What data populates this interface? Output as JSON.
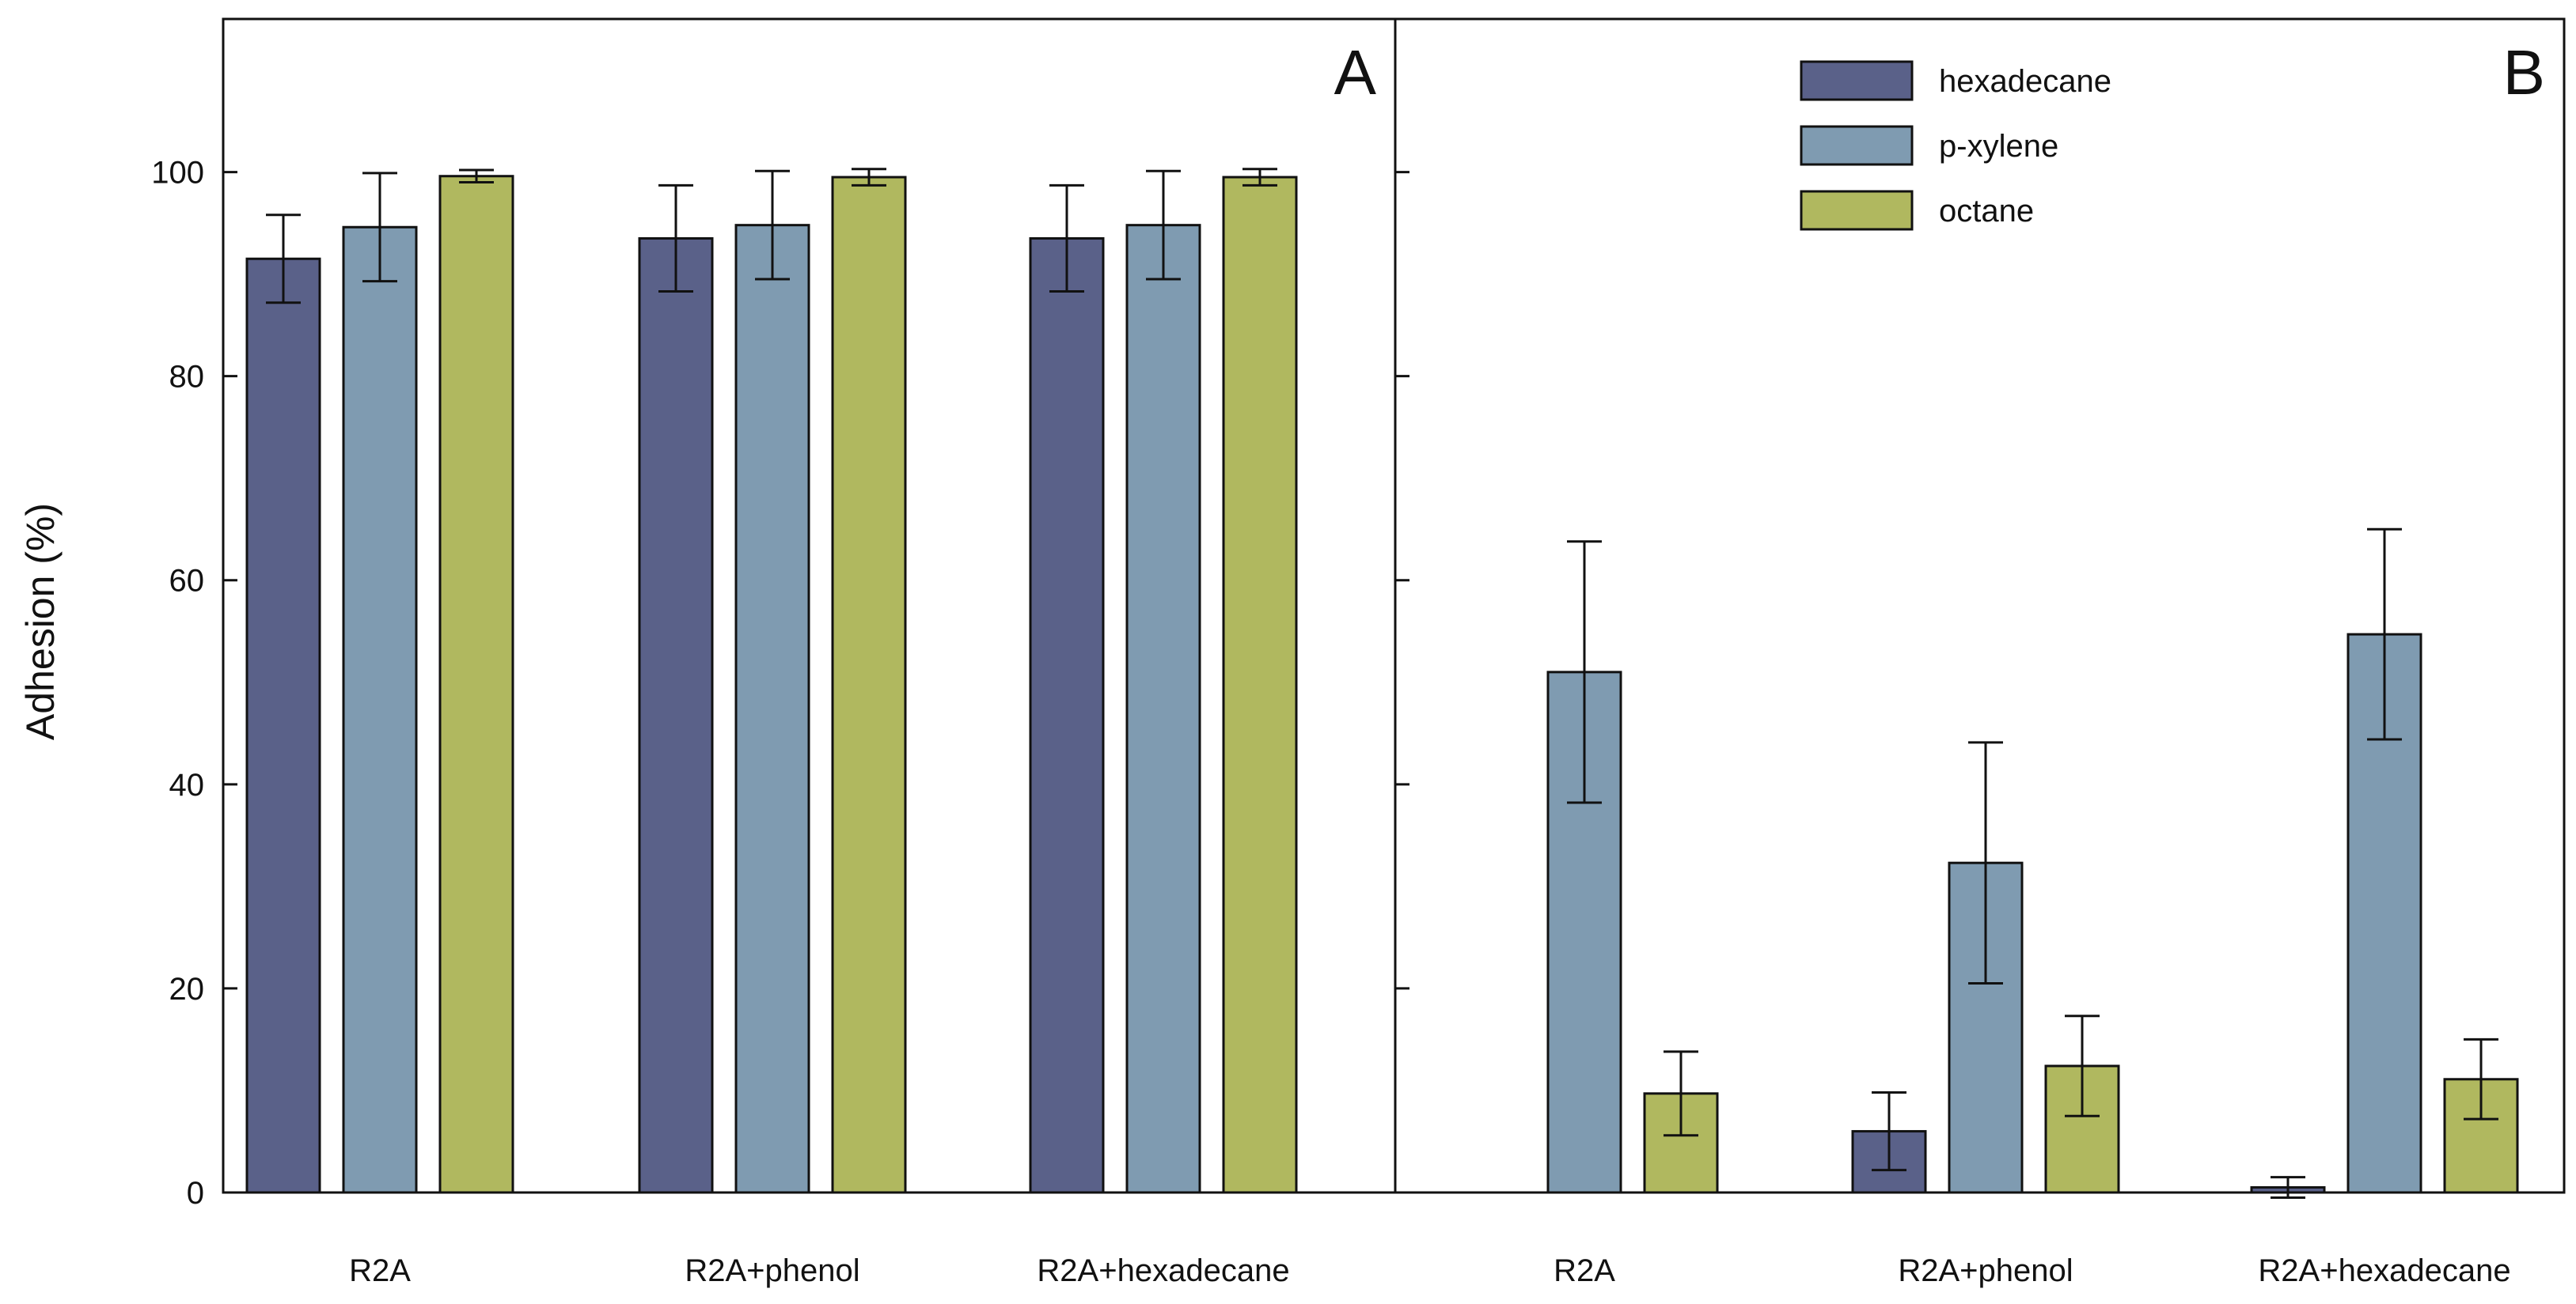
{
  "chart_data": [
    {
      "type": "bar",
      "panel_label": "A",
      "categories": [
        "R2A",
        "R2A+phenol",
        "R2A+hexadecane"
      ],
      "series": [
        {
          "name": "hexadecane",
          "color": "#5a6189",
          "values": [
            91.5,
            93.5,
            93.5
          ],
          "errors": [
            4.3,
            5.2,
            5.2
          ]
        },
        {
          "name": "p-xylene",
          "color": "#7f9bb1",
          "values": [
            94.6,
            94.8,
            94.8
          ],
          "errors": [
            5.3,
            5.3,
            5.3
          ]
        },
        {
          "name": "octane",
          "color": "#b0b85f",
          "values": [
            99.6,
            99.5,
            99.5
          ],
          "errors": [
            0.6,
            0.8,
            0.8
          ]
        }
      ],
      "ylabel": "Adhesion (%)",
      "ylim": [
        0,
        115
      ],
      "yticks": [
        0,
        20,
        40,
        60,
        80,
        100
      ],
      "ytick_labels": [
        "0",
        "20",
        "40",
        "60",
        "80",
        "100"
      ],
      "grid": false
    },
    {
      "type": "bar",
      "panel_label": "B",
      "categories": [
        "R2A",
        "R2A+phenol",
        "R2A+hexadecane"
      ],
      "series": [
        {
          "name": "hexadecane",
          "color": "#5a6189",
          "values": [
            0.0,
            6.0,
            0.5
          ],
          "errors": [
            0.0,
            3.8,
            1.0
          ]
        },
        {
          "name": "p-xylene",
          "color": "#7f9bb1",
          "values": [
            51.0,
            32.3,
            54.7
          ],
          "errors": [
            12.8,
            11.8,
            10.3
          ]
        },
        {
          "name": "octane",
          "color": "#b0b85f",
          "values": [
            9.7,
            12.4,
            11.1
          ],
          "errors": [
            4.1,
            4.9,
            3.9
          ]
        }
      ],
      "ylim": [
        0,
        115
      ],
      "grid": false,
      "legend": {
        "position": "top-right",
        "entries": [
          "hexadecane",
          "p-xylene",
          "octane"
        ]
      }
    }
  ]
}
